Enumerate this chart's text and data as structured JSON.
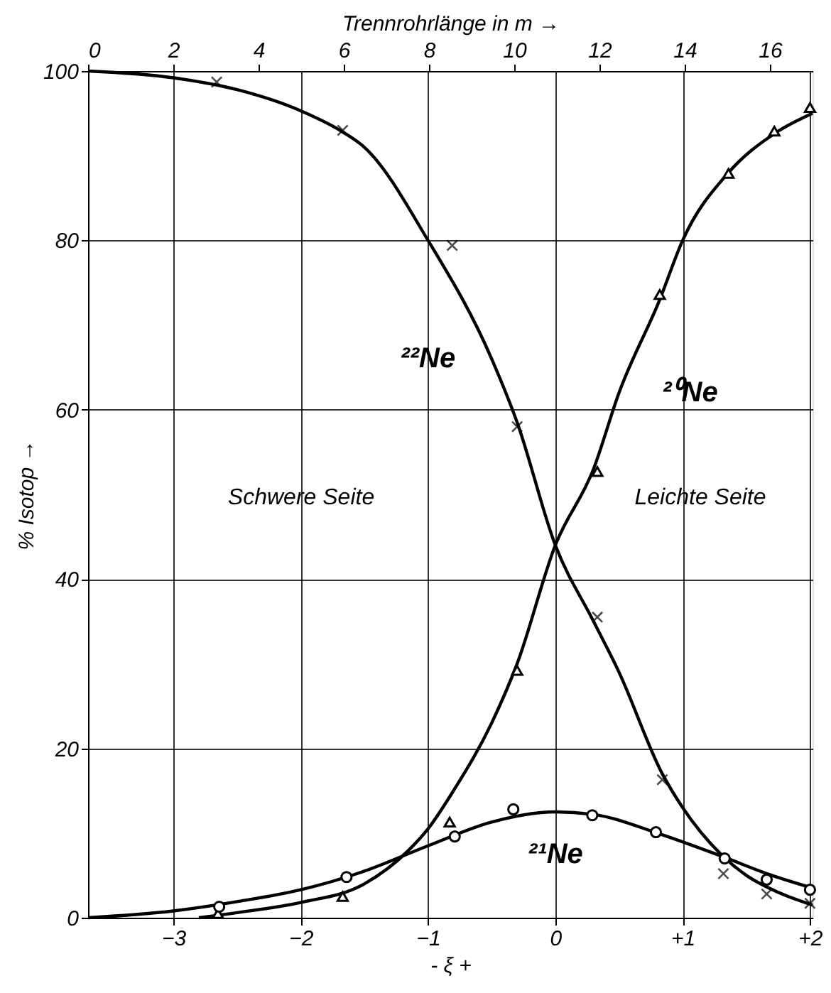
{
  "chart_data": {
    "type": "line",
    "xlabel": "- ξ +",
    "ylabel": "% Isotop →",
    "x2label": "Trennrohrlänge  in  m →",
    "xlim": [
      -3.67,
      2.02
    ],
    "xticks": [
      -3,
      -2,
      -1,
      0,
      {
        "value": 1,
        "label": "+1"
      },
      {
        "value": 2,
        "label": "+2"
      }
    ],
    "x2lim": [
      0,
      17
    ],
    "x2ticks": [
      0,
      2,
      4,
      6,
      8,
      10,
      12,
      14,
      16
    ],
    "ylim": [
      0,
      100
    ],
    "yticks": [
      0,
      20,
      40,
      60,
      80,
      100
    ],
    "grid": true,
    "line_style": "solid",
    "series": [
      {
        "name": "²²Ne",
        "color": "#000000",
        "x": [
          -3.67,
          -3,
          -2.5,
          -2,
          -1.67,
          -1.5,
          -1,
          -0.5,
          -0.3,
          0,
          0.3,
          0.5,
          0.84,
          1,
          1.3,
          1.5,
          1.75,
          2.02
        ],
        "values": [
          100,
          99.2,
          97.8,
          95.3,
          92.8,
          91,
          80,
          66,
          58.5,
          44,
          35,
          29,
          17,
          13,
          7.5,
          5,
          3,
          1.5
        ]
      },
      {
        "name": "²⁰Ne",
        "color": "#000000",
        "x": [
          -2.8,
          -2.5,
          -2,
          -1.5,
          -1.15,
          -1,
          -0.8,
          -0.5,
          -0.3,
          0,
          0.3,
          0.5,
          0.82,
          1,
          1.36,
          1.72,
          2.02
        ],
        "values": [
          0,
          0.6,
          1.8,
          4,
          8,
          10.5,
          15,
          23,
          30,
          44,
          53,
          62,
          73,
          80,
          88,
          92.6,
          95
        ]
      },
      {
        "name": "²¹Ne",
        "color": "#000000",
        "x": [
          -3.67,
          -3,
          -2.5,
          -2,
          -1.5,
          -1,
          -0.5,
          0,
          0.3,
          0.8,
          1.3,
          1.7,
          2.02
        ],
        "values": [
          0,
          0.8,
          1.9,
          3.3,
          5.5,
          8.5,
          11.3,
          12.5,
          12.2,
          10,
          7.3,
          5,
          3.5
        ]
      },
      {
        "type": "scatter",
        "color": "#000000",
        "marker": "cross",
        "x": [
          -2.66,
          -1.67,
          -0.81,
          -0.3,
          0.33,
          0.84,
          1.32,
          1.66,
          2.0
        ],
        "values": [
          98.7,
          93,
          79.4,
          58,
          35.5,
          16.3,
          5.2,
          2.8,
          1.7
        ]
      },
      {
        "type": "scatter",
        "color": "#000000",
        "marker": "triangle",
        "x": [
          -2.65,
          -1.67,
          -0.83,
          -0.3,
          0.33,
          0.82,
          1.36,
          1.72,
          2.0
        ],
        "values": [
          0.5,
          2.5,
          11.3,
          29.2,
          52.7,
          73.6,
          87.9,
          92.9,
          95.7
        ]
      },
      {
        "type": "scatter",
        "color": "#000000",
        "marker": "circle",
        "x": [
          -2.64,
          -1.64,
          -0.79,
          -0.33,
          0.29,
          0.79,
          1.33,
          1.66,
          2.0
        ],
        "values": [
          1.3,
          4.8,
          9.6,
          12.8,
          12.1,
          10.1,
          7.0,
          4.5,
          3.3
        ]
      }
    ],
    "annotations": [
      "Schwere Seite",
      "Leichte Seite"
    ]
  }
}
